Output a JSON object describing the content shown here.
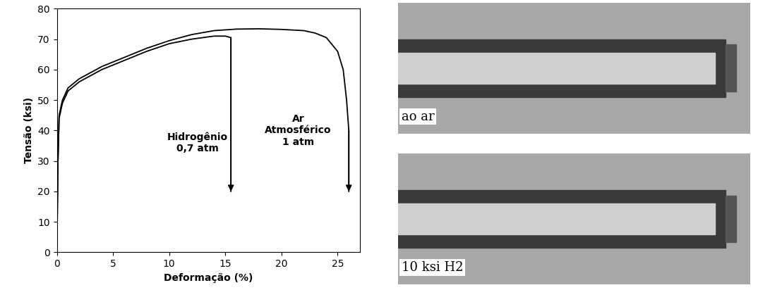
{
  "chart_data": {
    "type": "line",
    "x_label": "Deformação (%)",
    "y_label": "Tensão (ksi)",
    "xlim": [
      0,
      27
    ],
    "xticks": [
      0,
      5,
      10,
      15,
      20,
      25
    ],
    "ylim": [
      0,
      80
    ],
    "yticks": [
      0,
      10,
      20,
      30,
      40,
      50,
      60,
      70,
      80
    ],
    "grid": false,
    "series": [
      {
        "color": "#000000",
        "marker": "arrow",
        "x": [
          0,
          0.1,
          0.2,
          0.5,
          1,
          2,
          4,
          6,
          8,
          10,
          12,
          14,
          15,
          15.5,
          15.5
        ],
        "values": [
          0,
          30,
          44,
          49,
          53,
          56,
          60,
          63,
          66,
          68.5,
          70,
          71,
          71,
          70.5,
          20
        ]
      },
      {
        "color": "#000000",
        "marker": "arrow",
        "x": [
          0,
          0.1,
          0.2,
          0.5,
          1,
          2,
          4,
          6,
          8,
          10,
          12,
          14,
          16,
          18,
          20,
          22,
          23,
          24,
          25,
          25.5,
          25.8,
          26,
          26
        ],
        "values": [
          0,
          30,
          45,
          50,
          54,
          57,
          61,
          64,
          67,
          69.5,
          71.5,
          72.8,
          73.3,
          73.4,
          73.2,
          72.8,
          72,
          70.5,
          66,
          60,
          50,
          40,
          20
        ]
      }
    ],
    "annotations": [
      {
        "text": "Hidrogênio\n0,7 atm",
        "x": 12.5,
        "y": 36
      },
      {
        "text": "Ar\nAtmosférico\n1 atm",
        "x": 21.5,
        "y": 40
      }
    ]
  },
  "images": [
    {
      "label": "ao ar"
    },
    {
      "label": "10 ksi H2"
    }
  ]
}
